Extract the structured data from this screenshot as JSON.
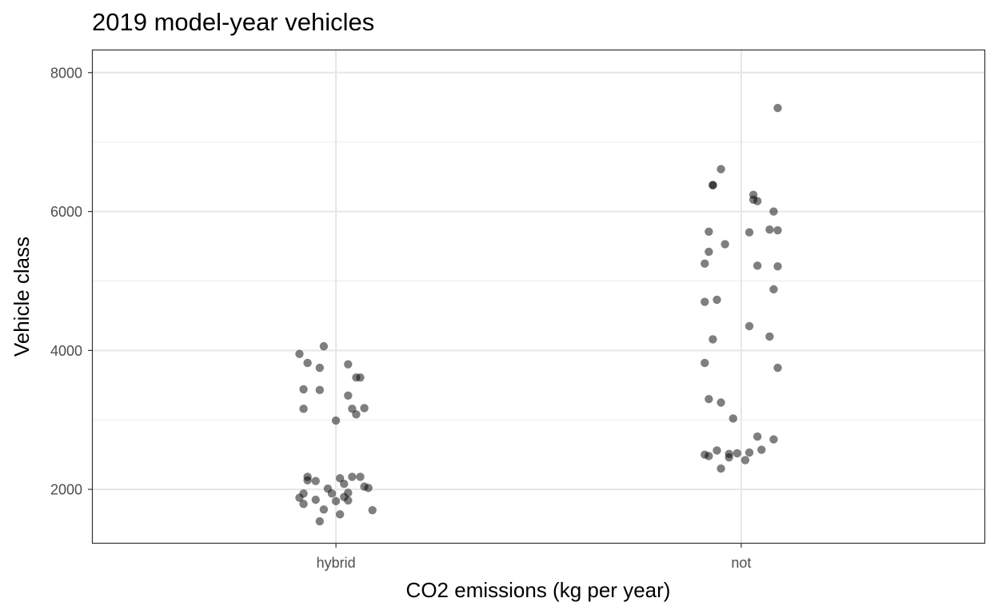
{
  "chart_data": {
    "type": "scatter",
    "title": "2019 model-year vehicles",
    "xlabel": "CO2 emissions (kg per year)",
    "ylabel": "Vehicle class",
    "categories": [
      "hybrid",
      "not"
    ],
    "ylim": [
      1230,
      8320
    ],
    "yticks": [
      2000,
      4000,
      6000,
      8000
    ],
    "grid": true,
    "point_color": "#000000",
    "point_opacity": 0.5,
    "series": [
      {
        "category": "hybrid",
        "x": [
          -0.03,
          -0.09,
          -0.07,
          -0.04,
          -0.08,
          0.03,
          0.05,
          0.06,
          0.07,
          0.04,
          0.05,
          0.0,
          0.03,
          -0.04,
          -0.08,
          -0.05,
          -0.07,
          -0.07,
          -0.08,
          -0.09,
          -0.08,
          -0.05,
          -0.03,
          -0.04,
          -0.02,
          0.01,
          0.02,
          0.04,
          0.06,
          0.07,
          0.08,
          0.03,
          0.02,
          0.0,
          -0.01,
          0.01,
          0.03,
          0.09
        ],
        "y": [
          4060,
          3950,
          3820,
          3750,
          3440,
          3800,
          3610,
          3610,
          3170,
          3160,
          3080,
          2990,
          3350,
          3430,
          3160,
          2120,
          2180,
          2130,
          1940,
          1880,
          1790,
          1850,
          1710,
          1540,
          2010,
          2160,
          2080,
          2180,
          2180,
          2040,
          2020,
          1950,
          1890,
          1830,
          1940,
          1640,
          1840,
          1700
        ]
      },
      {
        "category": "not",
        "x": [
          0.09,
          -0.05,
          -0.07,
          -0.07,
          0.03,
          0.03,
          0.04,
          0.08,
          -0.08,
          -0.04,
          0.02,
          0.07,
          0.09,
          0.09,
          -0.09,
          -0.08,
          0.04,
          0.08,
          -0.06,
          -0.09,
          0.02,
          -0.07,
          -0.09,
          -0.08,
          -0.05,
          0.07,
          0.09,
          -0.02,
          0.04,
          -0.08,
          -0.06,
          -0.09,
          -0.05,
          -0.03,
          -0.03,
          -0.01,
          0.02,
          0.05,
          0.08,
          0.01
        ],
        "y": [
          7490,
          6610,
          6380,
          6380,
          6240,
          6170,
          6150,
          6000,
          5710,
          5530,
          5700,
          5740,
          5730,
          5210,
          5250,
          5420,
          5220,
          4880,
          4730,
          4700,
          4350,
          4160,
          3820,
          3300,
          3250,
          4200,
          3750,
          3020,
          2760,
          2480,
          2560,
          2500,
          2300,
          2510,
          2460,
          2520,
          2530,
          2570,
          2720,
          2420
        ]
      }
    ]
  }
}
